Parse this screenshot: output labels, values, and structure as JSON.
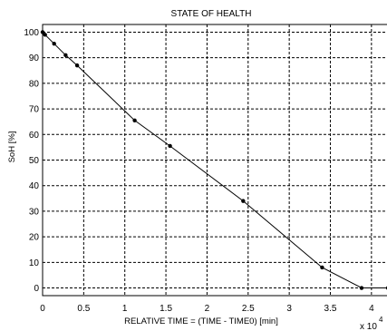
{
  "chart_data": {
    "type": "line",
    "title": "STATE OF HEALTH",
    "xlabel": "RELATIVE TIME = (TIME - TIME0) [min]",
    "ylabel": "SoH [%]",
    "x_multiplier": "x 10",
    "x_multiplier_exp": "4",
    "xlim": [
      0,
      4.2
    ],
    "ylim": [
      -3,
      103
    ],
    "x_ticks": [
      0,
      0.5,
      1,
      1.5,
      2,
      2.5,
      3,
      3.5,
      4
    ],
    "x_tick_labels": [
      "0",
      "0.5",
      "1",
      "1.5",
      "2",
      "2.5",
      "3",
      "3.5",
      "4"
    ],
    "y_ticks": [
      0,
      10,
      20,
      30,
      40,
      50,
      60,
      70,
      80,
      90,
      100
    ],
    "y_tick_labels": [
      "0",
      "10",
      "20",
      "30",
      "40",
      "50",
      "60",
      "70",
      "80",
      "90",
      "100"
    ],
    "grid": true,
    "series": [
      {
        "x": [
          0,
          0.03,
          0.14,
          0.28,
          0.42,
          1.12,
          1.55,
          2.44,
          3.4,
          3.88,
          4.2
        ],
        "y": [
          100,
          99,
          95.5,
          91,
          87,
          65.5,
          55.5,
          34,
          8,
          0,
          0
        ]
      }
    ]
  }
}
